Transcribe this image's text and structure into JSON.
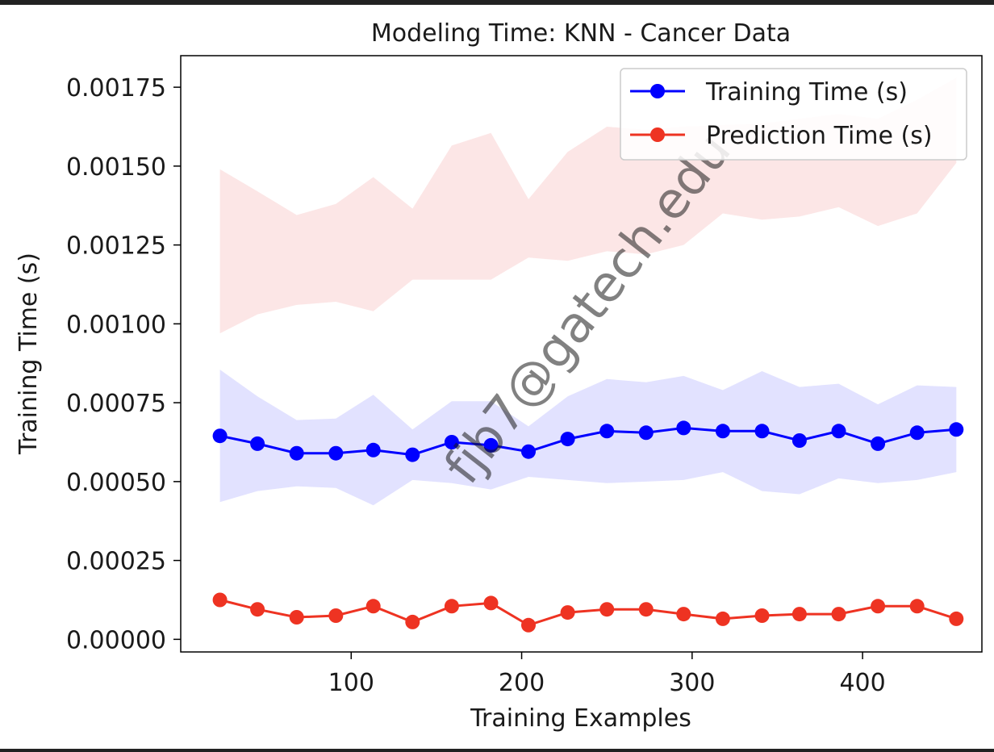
{
  "chart_data": {
    "type": "line",
    "title": "Modeling Time: KNN - Cancer Data",
    "xlabel": "Training Examples",
    "ylabel": "Training Time (s)",
    "xlim": [
      0,
      470
    ],
    "ylim": [
      -4e-05,
      0.00185
    ],
    "xticks": [
      100,
      200,
      300,
      400
    ],
    "xtick_labels": [
      "100",
      "200",
      "300",
      "400"
    ],
    "yticks": [
      0.0,
      0.00025,
      0.0005,
      0.00075,
      0.001,
      0.00125,
      0.0015,
      0.00175
    ],
    "ytick_labels": [
      "0.00000",
      "0.00025",
      "0.00050",
      "0.00075",
      "0.00100",
      "0.00125",
      "0.00150",
      "0.00175"
    ],
    "legend_position": "top-right",
    "grid": false,
    "x": [
      23,
      45,
      68,
      91,
      113,
      136,
      159,
      182,
      204,
      227,
      250,
      273,
      295,
      318,
      341,
      363,
      386,
      409,
      432,
      455
    ],
    "series": [
      {
        "name": "Training Time (s)",
        "color": "#0000ff",
        "band_color": "#d8d8ff",
        "values": [
          0.000645,
          0.00062,
          0.00059,
          0.00059,
          0.0006,
          0.000585,
          0.000625,
          0.000615,
          0.000595,
          0.000635,
          0.00066,
          0.000655,
          0.00067,
          0.00066,
          0.00066,
          0.00063,
          0.00066,
          0.00062,
          0.000655,
          0.000665
        ],
        "band_upper": [
          0.000855,
          0.00077,
          0.000695,
          0.0007,
          0.000775,
          0.000665,
          0.000755,
          0.000755,
          0.000675,
          0.00077,
          0.000825,
          0.000815,
          0.000835,
          0.00079,
          0.00085,
          0.0008,
          0.00081,
          0.000745,
          0.000805,
          0.0008
        ],
        "band_lower": [
          0.000435,
          0.00047,
          0.000485,
          0.00048,
          0.000425,
          0.000505,
          0.000495,
          0.000475,
          0.000515,
          0.000505,
          0.000495,
          0.0005,
          0.000505,
          0.00053,
          0.00047,
          0.00046,
          0.00051,
          0.000495,
          0.000505,
          0.00053
        ]
      },
      {
        "name": "Prediction Time (s)",
        "color": "#ee3322",
        "band_color": "#fbdede",
        "values": [
          0.000125,
          9.5e-05,
          7e-05,
          7.5e-05,
          0.000105,
          5.5e-05,
          0.000105,
          0.000115,
          4.5e-05,
          8.5e-05,
          9.5e-05,
          9.5e-05,
          8e-05,
          6.5e-05,
          7.5e-05,
          8e-05,
          8e-05,
          0.000105,
          0.000105,
          6.5e-05
        ],
        "band_upper": [
          0.00149,
          0.00142,
          0.001345,
          0.00138,
          0.001465,
          0.001365,
          0.001565,
          0.001605,
          0.001395,
          0.001545,
          0.001625,
          0.001615,
          0.001625,
          0.00163,
          0.001635,
          0.00165,
          0.001665,
          0.00165,
          0.00171,
          0.00178
        ],
        "band_lower": [
          0.00097,
          0.00103,
          0.00106,
          0.00107,
          0.00104,
          0.00114,
          0.00114,
          0.00114,
          0.00121,
          0.0012,
          0.00123,
          0.00122,
          0.00125,
          0.00135,
          0.00133,
          0.00134,
          0.00137,
          0.00131,
          0.00135,
          0.00151
        ]
      }
    ]
  },
  "watermark": "fjb7@gatech.edu"
}
